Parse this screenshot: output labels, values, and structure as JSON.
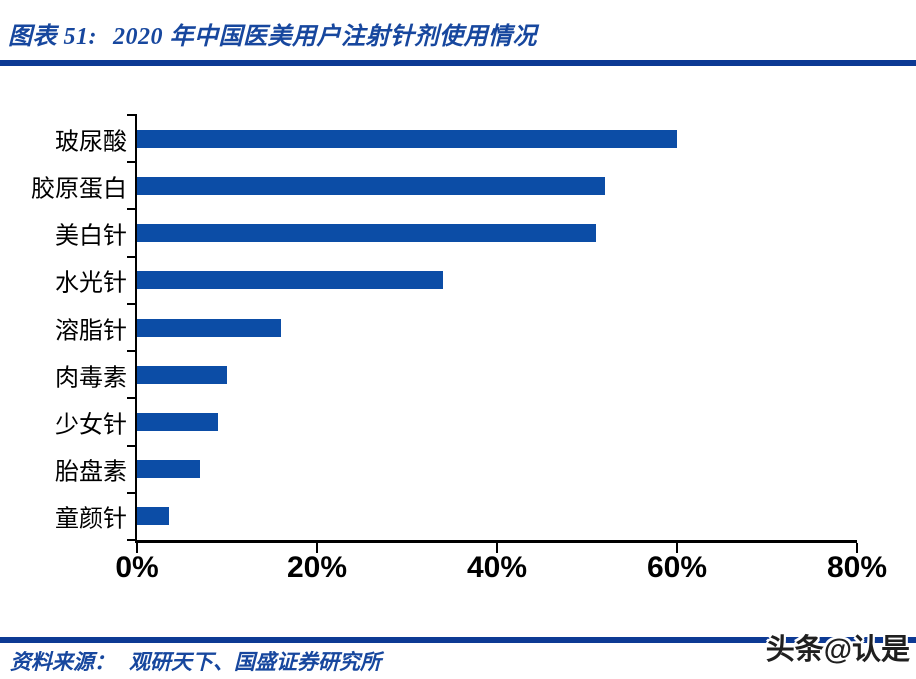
{
  "header": {
    "figure_label": "图表 51:",
    "caption": "2020 年中国医美用户注射针剂使用情况"
  },
  "footer": {
    "source_label": "资料来源：",
    "source_text": "观研天下、国盛证券研究所",
    "watermark": "头条@认是"
  },
  "colors": {
    "bar": "#0C4DA6",
    "rule": "#0D3A94",
    "accent_text": "#17479E",
    "axis": "#000000"
  },
  "chart_data": {
    "type": "bar",
    "orientation": "horizontal",
    "title": "2020 年中国医美用户注射针剂使用情况",
    "categories": [
      "玻尿酸",
      "胶原蛋白",
      "美白针",
      "水光针",
      "溶脂针",
      "肉毒素",
      "少女针",
      "胎盘素",
      "童颜针"
    ],
    "values": [
      60,
      52,
      51,
      34,
      16,
      10,
      9,
      7,
      3.5
    ],
    "unit": "%",
    "xlim": [
      0,
      80
    ],
    "x_ticks": [
      "0%",
      "20%",
      "40%",
      "60%",
      "80%"
    ],
    "bar_color": "#0C4DA6",
    "grid": false,
    "legend": false
  }
}
